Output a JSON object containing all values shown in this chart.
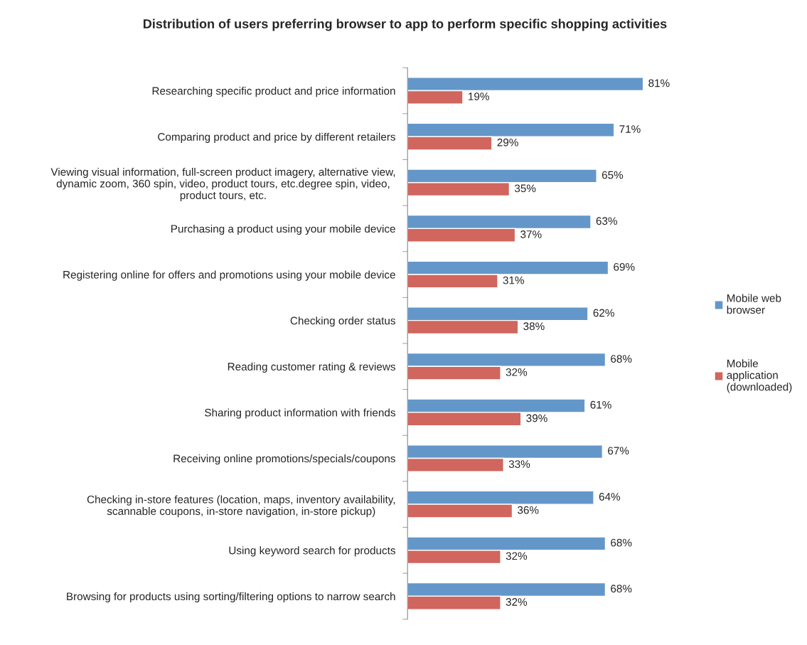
{
  "chart_data": {
    "type": "bar",
    "orientation": "horizontal",
    "title": "Distribution of users preferring browser to app to perform specific shopping activities",
    "categories": [
      "Researching specific product and price information",
      "Comparing product and price by different retailers",
      "Viewing visual information, full-screen product imagery, alternative view,\ndynamic zoom, 360 spin, video, product tours, etc.degree spin, video,\nproduct tours, etc.",
      "Purchasing a product using your mobile device",
      "Registering online for offers and promotions using your mobile device",
      "Checking order status",
      "Reading customer rating & reviews",
      "Sharing product information with friends",
      "Receiving online promotions/specials/coupons",
      "Checking in-store features (location, maps, inventory availability,\nscannable coupons, in-store navigation, in-store pickup)",
      "Using keyword search for products",
      "Browsing for products using sorting/filtering options to narrow search"
    ],
    "series": [
      {
        "name": "Mobile web\nbrowser",
        "color": "#6497c9",
        "values": [
          81,
          71,
          65,
          63,
          69,
          62,
          68,
          61,
          67,
          64,
          68,
          68
        ],
        "value_labels": [
          "81%",
          "71%",
          "65%",
          "63%",
          "69%",
          "62%",
          "68%",
          "61%",
          "67%",
          "64%",
          "68%",
          "68%"
        ]
      },
      {
        "name": "Mobile\napplication\n(downloaded)",
        "color": "#d0665e",
        "values": [
          19,
          29,
          35,
          37,
          31,
          38,
          32,
          39,
          33,
          36,
          32,
          32
        ],
        "value_labels": [
          "19%",
          "29%",
          "35%",
          "37%",
          "31%",
          "38%",
          "32%",
          "39%",
          "33%",
          "36%",
          "32%",
          "32%"
        ]
      }
    ],
    "legend": "right",
    "grid": false
  }
}
